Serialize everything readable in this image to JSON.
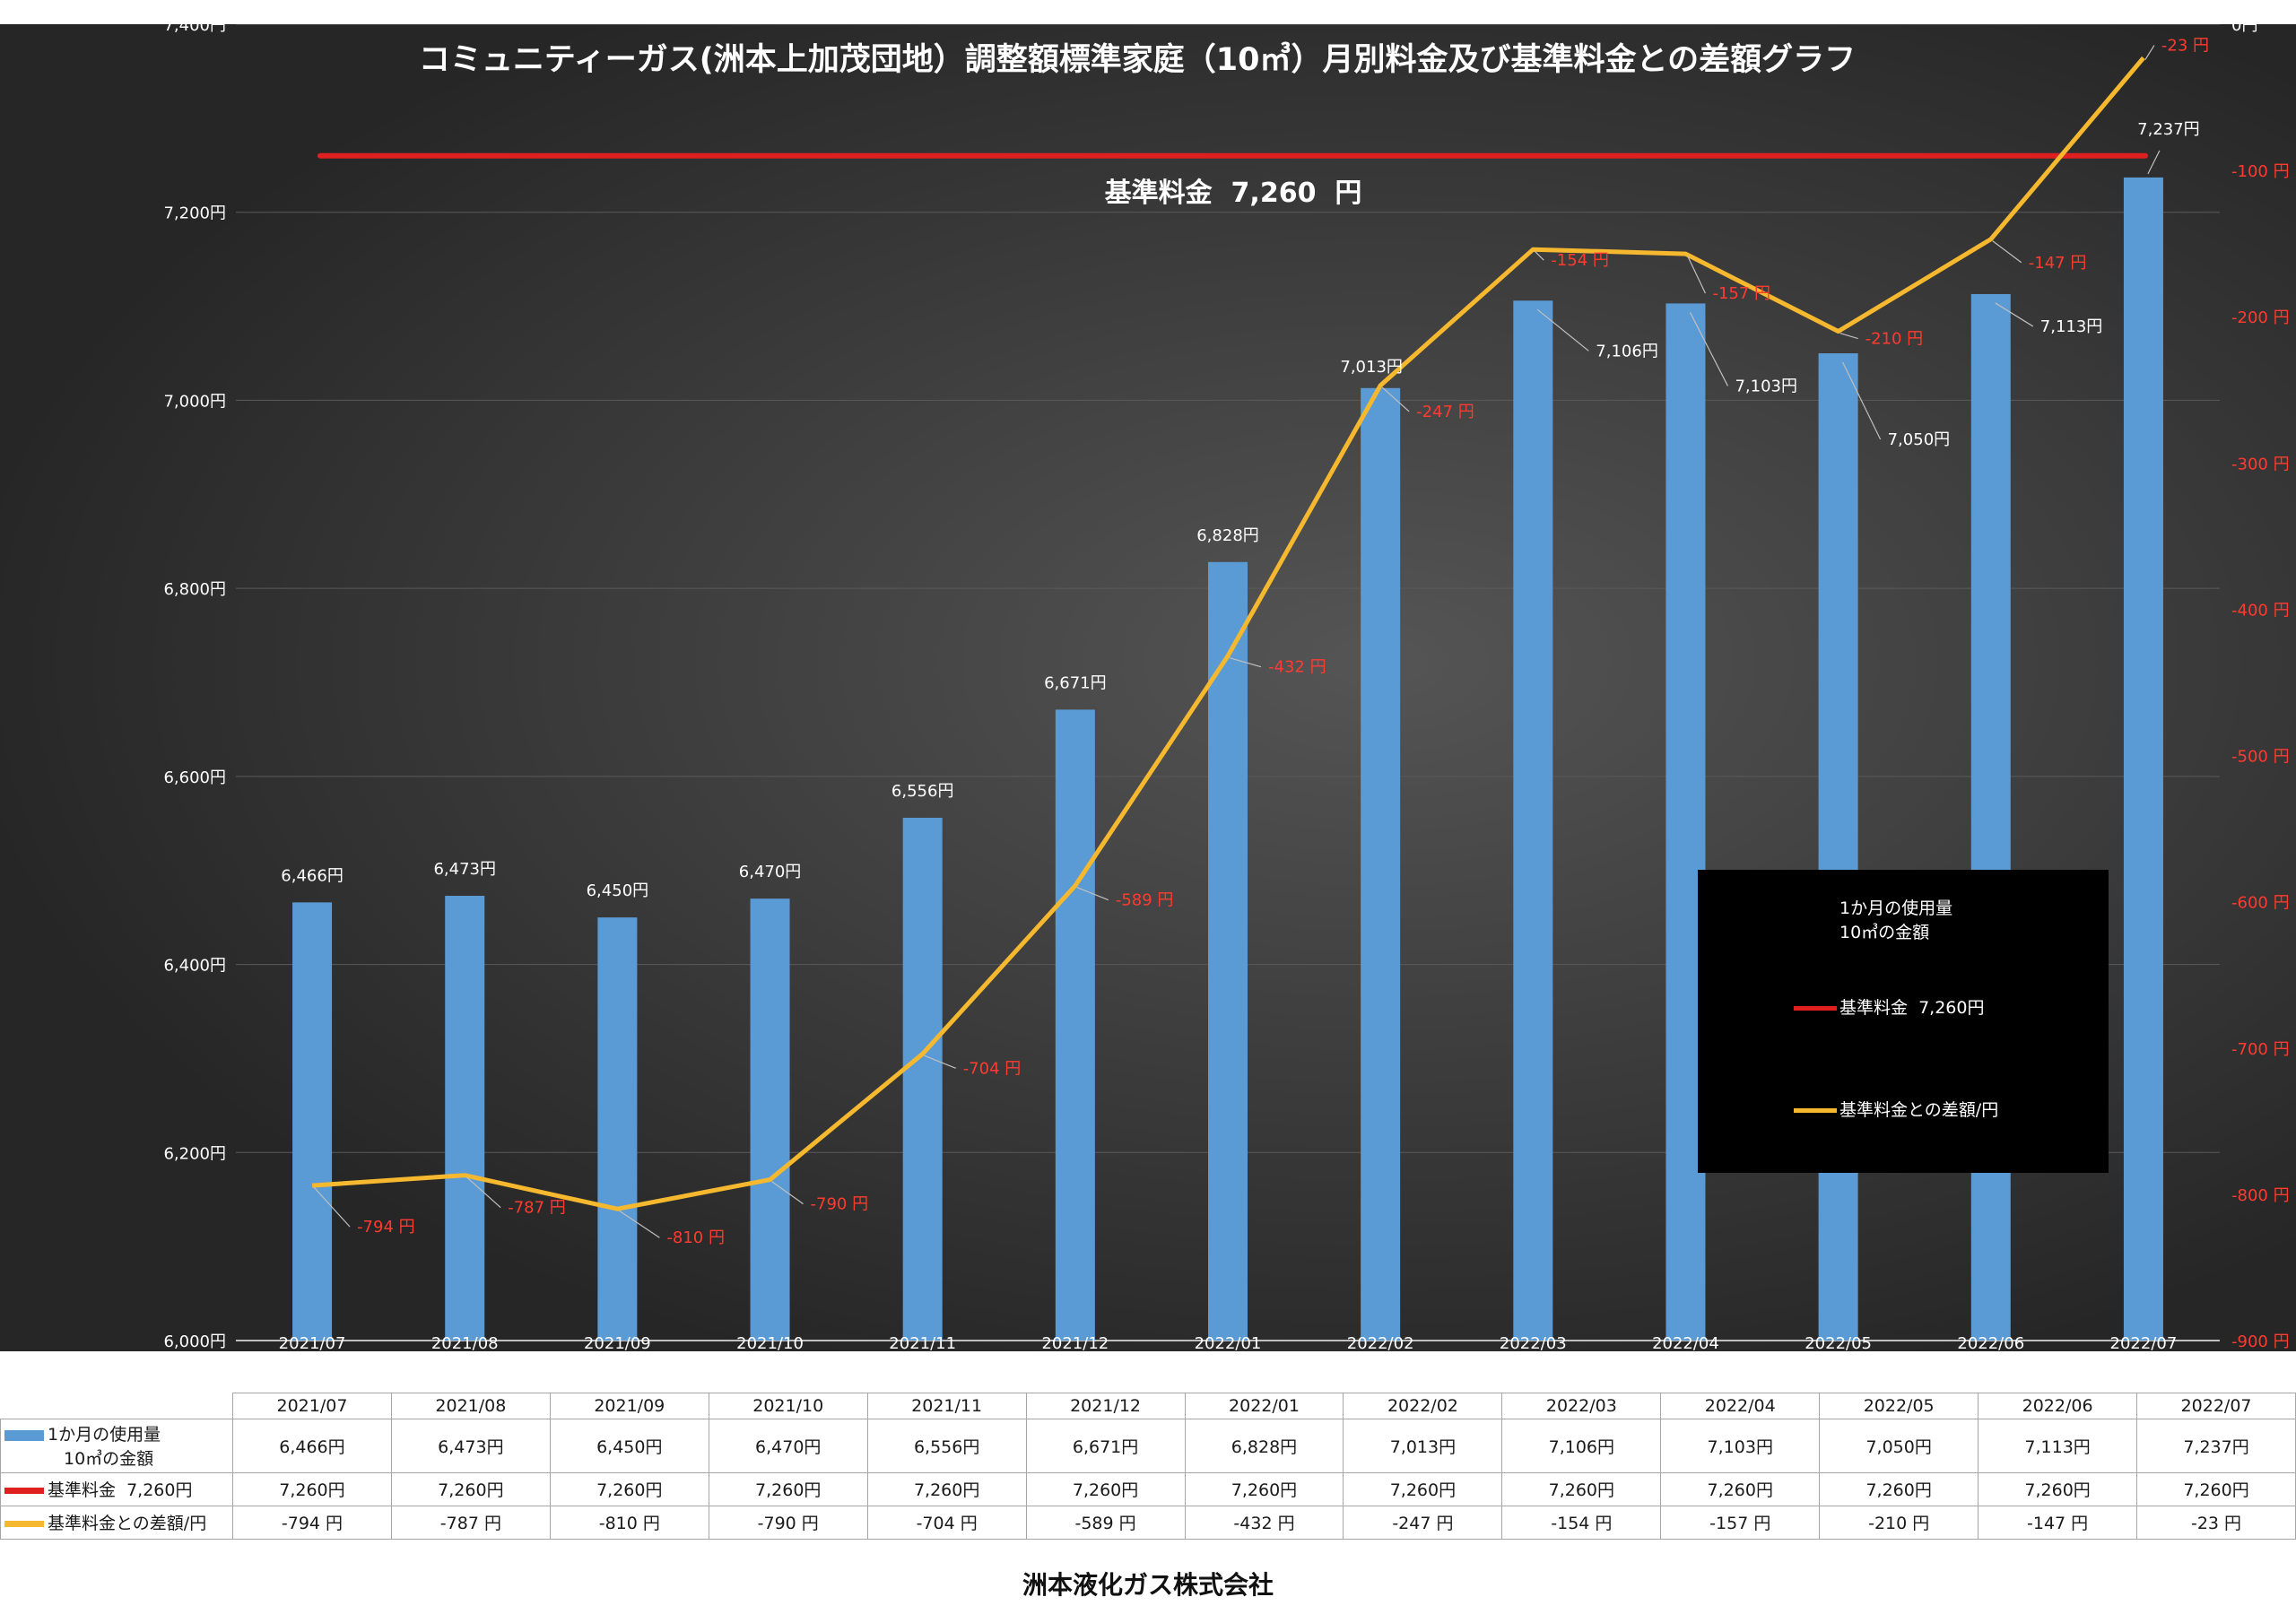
{
  "title": "コミュニティーガス(洲本上加茂団地）調整額標準家庭（10㎥）月別料金及び基準料金との差額グラフ",
  "base_label": "基準料金  7,260  円",
  "company": "洲本液化ガス株式会社",
  "colors": {
    "bar": "#5b9bd5",
    "base_line": "#e02020",
    "diff_line": "#f5b82e",
    "diff_text": "#ff3b30"
  },
  "legend": {
    "bar_line1": "1か月の使用量",
    "bar_line2": "10㎥の金額",
    "base": "基準料金  7,260円",
    "diff": "基準料金との差額/円"
  },
  "table": {
    "row_bar_line1": "1か月の使用量",
    "row_bar_line2": "10㎥の金額",
    "row_base": "基準料金  7,260円",
    "row_diff": "基準料金との差額/円",
    "bar_cells": [
      "6,466円",
      "6,473円",
      "6,450円",
      "6,470円",
      "6,556円",
      "6,671円",
      "6,828円",
      "7,013円",
      "7,106円",
      "7,103円",
      "7,050円",
      "7,113円",
      "7,237円"
    ],
    "base_cells": [
      "7,260円",
      "7,260円",
      "7,260円",
      "7,260円",
      "7,260円",
      "7,260円",
      "7,260円",
      "7,260円",
      "7,260円",
      "7,260円",
      "7,260円",
      "7,260円",
      "7,260円"
    ],
    "diff_cells": [
      "-794 円",
      "-787 円",
      "-810 円",
      "-790 円",
      "-704 円",
      "-589 円",
      "-432 円",
      "-247 円",
      "-154 円",
      "-157 円",
      "-210 円",
      "-147 円",
      "-23 円"
    ]
  },
  "chart_data": {
    "type": "bar",
    "title": "コミュニティーガス(洲本上加茂団地）調整額標準家庭（10㎥）月別料金及び基準料金との差額グラフ",
    "categories": [
      "2021/07",
      "2021/08",
      "2021/09",
      "2021/10",
      "2021/11",
      "2021/12",
      "2022/01",
      "2022/02",
      "2022/03",
      "2022/04",
      "2022/05",
      "2022/06",
      "2022/07"
    ],
    "series": [
      {
        "name": "1か月の使用量 10㎥の金額",
        "type": "bar",
        "axis": "left",
        "values": [
          6466,
          6473,
          6450,
          6470,
          6556,
          6671,
          6828,
          7013,
          7106,
          7103,
          7050,
          7113,
          7237
        ],
        "labels": [
          "6,466円",
          "6,473円",
          "6,450円",
          "6,470円",
          "6,556円",
          "6,671円",
          "6,828円",
          "7,013円",
          "7,106円",
          "7,103円",
          "7,050円",
          "7,113円",
          "7,237円"
        ]
      },
      {
        "name": "基準料金  7,260円",
        "type": "line",
        "axis": "left",
        "values": [
          7260,
          7260,
          7260,
          7260,
          7260,
          7260,
          7260,
          7260,
          7260,
          7260,
          7260,
          7260,
          7260
        ]
      },
      {
        "name": "基準料金との差額/円",
        "type": "line",
        "axis": "right",
        "values": [
          -794,
          -787,
          -810,
          -790,
          -704,
          -589,
          -432,
          -247,
          -154,
          -157,
          -210,
          -147,
          -23
        ],
        "labels": [
          "-794 円",
          "-787 円",
          "-810 円",
          "-790 円",
          "-704 円",
          "-589 円",
          "-432 円",
          "-247 円",
          "-154 円",
          "-157 円",
          "-210 円",
          "-147 円",
          "-23 円"
        ]
      }
    ],
    "left_axis": {
      "min": 6000,
      "max": 7400,
      "ticks": [
        6000,
        6200,
        6400,
        6600,
        6800,
        7000,
        7200,
        7400
      ],
      "tick_labels": [
        "6,000円",
        "6,200円",
        "6,400円",
        "6,600円",
        "6,800円",
        "7,000円",
        "7,200円",
        "7,400円"
      ]
    },
    "right_axis": {
      "min": -900,
      "max": 0,
      "ticks": [
        0,
        -100,
        -200,
        -300,
        -400,
        -500,
        -600,
        -700,
        -800,
        -900
      ],
      "tick_labels": [
        "0円",
        "-100 円",
        "-200 円",
        "-300 円",
        "-400 円",
        "-500 円",
        "-600 円",
        "-700 円",
        "-800 円",
        "-900 円"
      ]
    },
    "grid": true,
    "legend_position": "bottom-right"
  }
}
